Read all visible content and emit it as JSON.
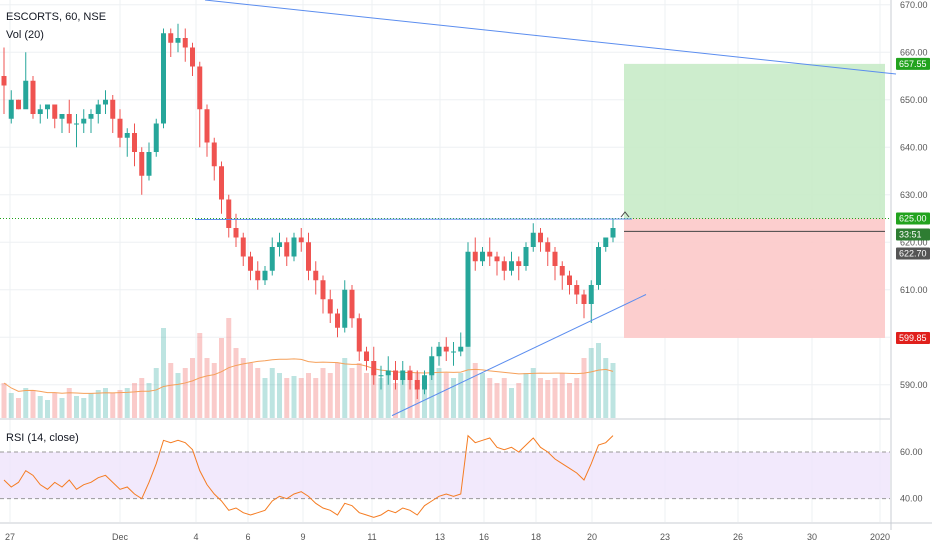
{
  "legend": {
    "symbol": "ESCORTS, 60, NSE",
    "volume": "Vol (20)",
    "rsi": "RSI (14, close)"
  },
  "colors": {
    "up": "#26a69a",
    "down": "#ef5350",
    "ma": "#f5a05a",
    "trendline": "#5b8def",
    "rsi": "#f57c22",
    "target_zone": "#c8ebc8",
    "stop_zone": "#fcc9c9",
    "green_badge": "#22a31e",
    "red_badge": "#e0201c",
    "dark_badge": "#555555",
    "rsi_band": "#efe3fb"
  },
  "badges": {
    "target": "657.55",
    "entry": "625.00",
    "countdown": "33:51",
    "last": "622.70",
    "stop": "599.85"
  },
  "chart_data": [
    {
      "type": "candlestick",
      "title": "ESCORTS, 60, NSE",
      "y_ticks": [
        "670.00",
        "660.00",
        "650.00",
        "640.00",
        "630.00",
        "620.00",
        "610.00",
        "600.00",
        "590.00"
      ],
      "ylim": [
        583,
        671
      ],
      "x_ticks": [
        "27",
        "Dec",
        "4",
        "6",
        "9",
        "11",
        "13",
        "16",
        "18",
        "20",
        "23",
        "26",
        "30",
        "2020"
      ],
      "candles": [
        [
          655,
          661,
          653,
          647
        ],
        [
          646,
          652,
          650,
          645
        ],
        [
          650,
          650,
          648,
          648
        ],
        [
          648,
          660,
          654,
          650
        ],
        [
          654,
          655,
          647,
          646
        ],
        [
          647,
          649,
          648,
          645
        ],
        [
          648,
          649,
          649,
          646
        ],
        [
          649,
          649,
          646,
          644
        ],
        [
          646,
          647,
          647,
          643
        ],
        [
          647,
          650,
          645,
          643
        ],
        [
          645,
          647,
          645,
          640
        ],
        [
          645,
          648,
          646,
          643
        ],
        [
          646,
          648,
          647,
          643
        ],
        [
          647,
          650,
          649,
          645
        ],
        [
          649,
          652,
          650,
          647
        ],
        [
          650,
          651,
          646,
          643
        ],
        [
          646,
          648,
          642,
          640
        ],
        [
          642,
          644,
          643,
          638
        ],
        [
          643,
          645,
          639,
          636
        ],
        [
          639,
          640,
          634,
          630
        ],
        [
          634,
          641,
          639,
          633
        ],
        [
          639,
          646,
          645,
          638
        ],
        [
          645,
          665,
          664,
          644
        ],
        [
          664,
          665,
          662,
          659
        ],
        [
          662,
          666,
          663,
          660
        ],
        [
          663,
          665,
          661,
          658
        ],
        [
          661,
          662,
          657,
          655
        ],
        [
          657,
          658,
          648,
          640
        ],
        [
          648,
          649,
          641,
          638
        ],
        [
          641,
          642,
          636,
          633
        ],
        [
          636,
          637,
          629,
          626
        ],
        [
          629,
          630,
          623,
          621
        ],
        [
          623,
          626,
          621,
          619
        ],
        [
          621,
          622,
          617,
          615
        ],
        [
          617,
          618,
          614,
          612
        ],
        [
          614,
          616,
          612,
          610
        ],
        [
          612,
          615,
          614,
          611
        ],
        [
          614,
          621,
          619,
          613
        ],
        [
          619,
          622,
          620,
          617
        ],
        [
          620,
          621,
          617,
          615
        ],
        [
          617,
          622,
          621,
          616
        ],
        [
          621,
          623,
          620,
          618
        ],
        [
          620,
          622,
          614,
          612
        ],
        [
          614,
          616,
          612,
          609
        ],
        [
          612,
          613,
          608,
          605
        ],
        [
          608,
          610,
          605,
          603
        ],
        [
          605,
          606,
          602,
          600
        ],
        [
          602,
          612,
          610,
          601
        ],
        [
          610,
          611,
          604,
          602
        ],
        [
          604,
          605,
          597,
          595
        ],
        [
          597,
          598,
          595,
          593
        ],
        [
          595,
          598,
          592,
          590
        ],
        [
          592,
          594,
          592,
          589
        ],
        [
          592,
          596,
          593,
          590
        ],
        [
          593,
          595,
          591,
          589
        ],
        [
          591,
          595,
          593,
          590
        ],
        [
          593,
          594,
          591,
          589
        ],
        [
          591,
          593,
          589,
          587
        ],
        [
          589,
          593,
          592,
          588
        ],
        [
          592,
          598,
          596,
          591
        ],
        [
          596,
          599,
          598,
          594
        ],
        [
          598,
          600,
          597,
          595
        ],
        [
          597,
          599,
          597,
          594
        ],
        [
          597,
          601,
          598,
          596
        ],
        [
          598,
          620,
          618,
          598
        ],
        [
          618,
          621,
          616,
          614
        ],
        [
          616,
          619,
          618,
          615
        ],
        [
          618,
          621,
          617,
          615
        ],
        [
          617,
          618,
          616,
          613
        ],
        [
          616,
          617,
          614,
          612
        ],
        [
          614,
          618,
          616,
          613
        ],
        [
          616,
          617,
          615,
          612
        ],
        [
          615,
          620,
          619,
          614
        ],
        [
          619,
          624,
          622,
          618
        ],
        [
          622,
          623,
          620,
          618
        ],
        [
          620,
          621,
          618,
          615
        ],
        [
          618,
          619,
          615,
          612
        ],
        [
          615,
          616,
          613,
          610
        ],
        [
          613,
          614,
          611,
          609
        ],
        [
          611,
          612,
          609,
          607
        ],
        [
          609,
          610,
          607,
          604
        ],
        [
          607,
          612,
          611,
          603
        ],
        [
          611,
          620,
          619,
          610
        ],
        [
          619,
          621,
          621,
          618
        ],
        [
          621,
          625,
          623,
          620
        ]
      ]
    },
    {
      "type": "bar",
      "title": "Vol (20)",
      "values_relative": [
        0.35,
        0.25,
        0.2,
        0.3,
        0.28,
        0.22,
        0.18,
        0.25,
        0.2,
        0.3,
        0.22,
        0.2,
        0.25,
        0.28,
        0.3,
        0.25,
        0.28,
        0.3,
        0.35,
        0.4,
        0.35,
        0.5,
        0.9,
        0.55,
        0.45,
        0.5,
        0.6,
        0.85,
        0.6,
        0.55,
        0.8,
        1.0,
        0.7,
        0.6,
        0.55,
        0.5,
        0.4,
        0.5,
        0.45,
        0.4,
        0.42,
        0.4,
        0.45,
        0.4,
        0.5,
        0.45,
        0.55,
        0.6,
        0.5,
        0.55,
        0.45,
        0.5,
        0.4,
        0.45,
        0.35,
        0.4,
        0.38,
        0.45,
        0.4,
        0.45,
        0.5,
        0.45,
        0.4,
        0.45,
        0.95,
        0.55,
        0.45,
        0.4,
        0.35,
        0.4,
        0.3,
        0.35,
        0.45,
        0.5,
        0.4,
        0.38,
        0.4,
        0.45,
        0.35,
        0.4,
        0.6,
        0.7,
        0.75,
        0.6,
        0.55
      ]
    },
    {
      "type": "line",
      "title": "RSI (14, close)",
      "y_ticks": [
        "60.00",
        "40.00"
      ],
      "ylim": [
        30,
        72
      ],
      "values": [
        48,
        45,
        47,
        52,
        50,
        46,
        44,
        47,
        45,
        48,
        44,
        46,
        47,
        49,
        50,
        47,
        44,
        45,
        42,
        40,
        47,
        55,
        65,
        64,
        65,
        64,
        61,
        52,
        46,
        42,
        39,
        35,
        36,
        34,
        33,
        34,
        35,
        39,
        41,
        40,
        42,
        43,
        41,
        38,
        36,
        35,
        33,
        38,
        37,
        34,
        33,
        32,
        33,
        35,
        34,
        36,
        35,
        33,
        37,
        39,
        41,
        42,
        41,
        42,
        67,
        64,
        65,
        66,
        62,
        61,
        62,
        60,
        63,
        66,
        62,
        60,
        57,
        55,
        53,
        51,
        48,
        55,
        63,
        64,
        67
      ]
    }
  ]
}
